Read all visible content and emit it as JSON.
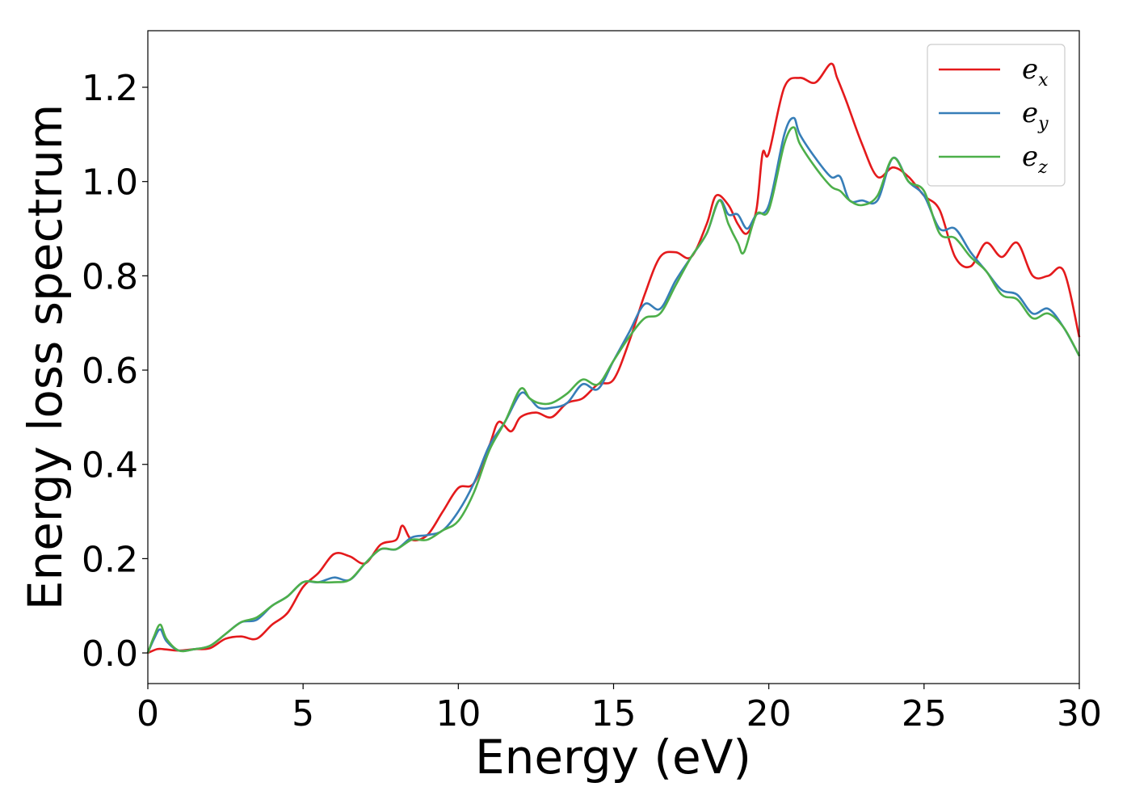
{
  "chart_data": {
    "type": "line",
    "xlabel": "Energy (eV)",
    "ylabel": "Energy loss spectrum",
    "xlim": [
      0,
      30
    ],
    "ylim": [
      -0.065,
      1.32
    ],
    "xticks": [
      0,
      5,
      10,
      15,
      20,
      25,
      30
    ],
    "yticks": [
      0.0,
      0.2,
      0.4,
      0.6,
      0.8,
      1.0,
      1.2
    ],
    "xtick_labels": [
      "0",
      "5",
      "10",
      "15",
      "20",
      "25",
      "30"
    ],
    "ytick_labels": [
      "0.0",
      "0.2",
      "0.4",
      "0.6",
      "0.8",
      "1.0",
      "1.2"
    ],
    "grid": false,
    "legend_position": "top-right",
    "series": [
      {
        "name": "e_x",
        "base": "e",
        "sub": "x",
        "color": "#e41a1c",
        "x": [
          0,
          0.3,
          0.5,
          1.0,
          1.5,
          2.0,
          2.5,
          3.0,
          3.5,
          4.0,
          4.5,
          5.0,
          5.5,
          6.0,
          6.5,
          7.0,
          7.5,
          8.0,
          8.2,
          8.5,
          9.0,
          9.5,
          10.0,
          10.5,
          11.0,
          11.3,
          11.7,
          12.0,
          12.5,
          13.0,
          13.5,
          14.0,
          14.5,
          15.0,
          15.5,
          16.0,
          16.5,
          17.0,
          17.5,
          18.0,
          18.3,
          18.7,
          19.0,
          19.3,
          19.6,
          19.8,
          20.0,
          20.5,
          21.0,
          21.5,
          22.0,
          22.2,
          22.5,
          23.0,
          23.5,
          24.0,
          24.5,
          25.0,
          25.5,
          26.0,
          26.5,
          27.0,
          27.5,
          28.0,
          28.5,
          29.0,
          29.5,
          30.0
        ],
        "y": [
          0.0,
          0.008,
          0.008,
          0.005,
          0.008,
          0.01,
          0.03,
          0.035,
          0.03,
          0.06,
          0.085,
          0.14,
          0.17,
          0.21,
          0.205,
          0.19,
          0.23,
          0.24,
          0.27,
          0.24,
          0.25,
          0.3,
          0.35,
          0.36,
          0.44,
          0.49,
          0.47,
          0.5,
          0.51,
          0.5,
          0.53,
          0.54,
          0.57,
          0.58,
          0.66,
          0.76,
          0.84,
          0.85,
          0.84,
          0.91,
          0.97,
          0.95,
          0.91,
          0.89,
          0.94,
          1.06,
          1.06,
          1.2,
          1.22,
          1.21,
          1.25,
          1.22,
          1.17,
          1.08,
          1.01,
          1.03,
          1.01,
          0.97,
          0.94,
          0.84,
          0.82,
          0.87,
          0.84,
          0.87,
          0.8,
          0.8,
          0.81,
          0.67
        ]
      },
      {
        "name": "e_y",
        "base": "e",
        "sub": "y",
        "color": "#377eb8",
        "x": [
          0,
          0.2,
          0.4,
          0.6,
          1.0,
          1.5,
          2.0,
          2.5,
          3.0,
          3.5,
          4.0,
          4.5,
          5.0,
          5.5,
          6.0,
          6.5,
          7.0,
          7.5,
          8.0,
          8.5,
          9.0,
          9.5,
          10.0,
          10.5,
          11.0,
          11.5,
          12.0,
          12.3,
          12.6,
          13.0,
          13.5,
          14.0,
          14.5,
          15.0,
          15.5,
          16.0,
          16.5,
          17.0,
          17.5,
          18.0,
          18.4,
          18.7,
          19.0,
          19.3,
          19.6,
          20.0,
          20.5,
          20.8,
          21.0,
          21.5,
          22.0,
          22.3,
          22.6,
          23.0,
          23.5,
          24.0,
          24.5,
          25.0,
          25.5,
          26.0,
          26.5,
          27.0,
          27.5,
          28.0,
          28.5,
          29.0,
          29.5,
          30.0
        ],
        "y": [
          0.0,
          0.03,
          0.05,
          0.025,
          0.005,
          0.008,
          0.015,
          0.04,
          0.065,
          0.07,
          0.1,
          0.12,
          0.15,
          0.15,
          0.16,
          0.155,
          0.19,
          0.22,
          0.22,
          0.245,
          0.25,
          0.26,
          0.3,
          0.36,
          0.44,
          0.49,
          0.55,
          0.54,
          0.52,
          0.52,
          0.53,
          0.57,
          0.56,
          0.62,
          0.68,
          0.74,
          0.73,
          0.79,
          0.84,
          0.89,
          0.96,
          0.93,
          0.93,
          0.9,
          0.93,
          0.95,
          1.1,
          1.135,
          1.1,
          1.05,
          1.01,
          1.01,
          0.96,
          0.96,
          0.96,
          1.05,
          1.0,
          0.97,
          0.9,
          0.9,
          0.85,
          0.81,
          0.77,
          0.76,
          0.72,
          0.73,
          0.69,
          0.63
        ]
      },
      {
        "name": "e_z",
        "base": "e",
        "sub": "z",
        "color": "#4daf4a",
        "x": [
          0,
          0.2,
          0.4,
          0.6,
          1.0,
          1.5,
          2.0,
          2.5,
          3.0,
          3.5,
          4.0,
          4.5,
          5.0,
          5.5,
          6.0,
          6.5,
          7.0,
          7.5,
          8.0,
          8.5,
          9.0,
          9.5,
          10.0,
          10.5,
          11.0,
          11.5,
          12.0,
          12.3,
          12.6,
          13.0,
          13.5,
          14.0,
          14.5,
          15.0,
          15.5,
          16.0,
          16.5,
          17.0,
          17.5,
          18.0,
          18.4,
          18.7,
          19.0,
          19.2,
          19.6,
          20.0,
          20.5,
          20.8,
          21.0,
          21.5,
          22.0,
          22.3,
          22.6,
          23.0,
          23.5,
          24.0,
          24.5,
          25.0,
          25.5,
          26.0,
          26.5,
          27.0,
          27.5,
          28.0,
          28.5,
          29.0,
          29.5,
          30.0
        ],
        "y": [
          0.0,
          0.035,
          0.06,
          0.03,
          0.005,
          0.008,
          0.015,
          0.04,
          0.065,
          0.075,
          0.1,
          0.12,
          0.15,
          0.15,
          0.15,
          0.155,
          0.19,
          0.22,
          0.22,
          0.24,
          0.24,
          0.26,
          0.28,
          0.34,
          0.43,
          0.49,
          0.56,
          0.54,
          0.53,
          0.53,
          0.55,
          0.58,
          0.57,
          0.62,
          0.67,
          0.71,
          0.72,
          0.78,
          0.84,
          0.89,
          0.96,
          0.91,
          0.87,
          0.85,
          0.93,
          0.94,
          1.08,
          1.115,
          1.08,
          1.03,
          0.99,
          0.98,
          0.96,
          0.95,
          0.97,
          1.05,
          1.0,
          0.98,
          0.89,
          0.88,
          0.84,
          0.81,
          0.76,
          0.75,
          0.71,
          0.72,
          0.69,
          0.63
        ]
      }
    ]
  }
}
